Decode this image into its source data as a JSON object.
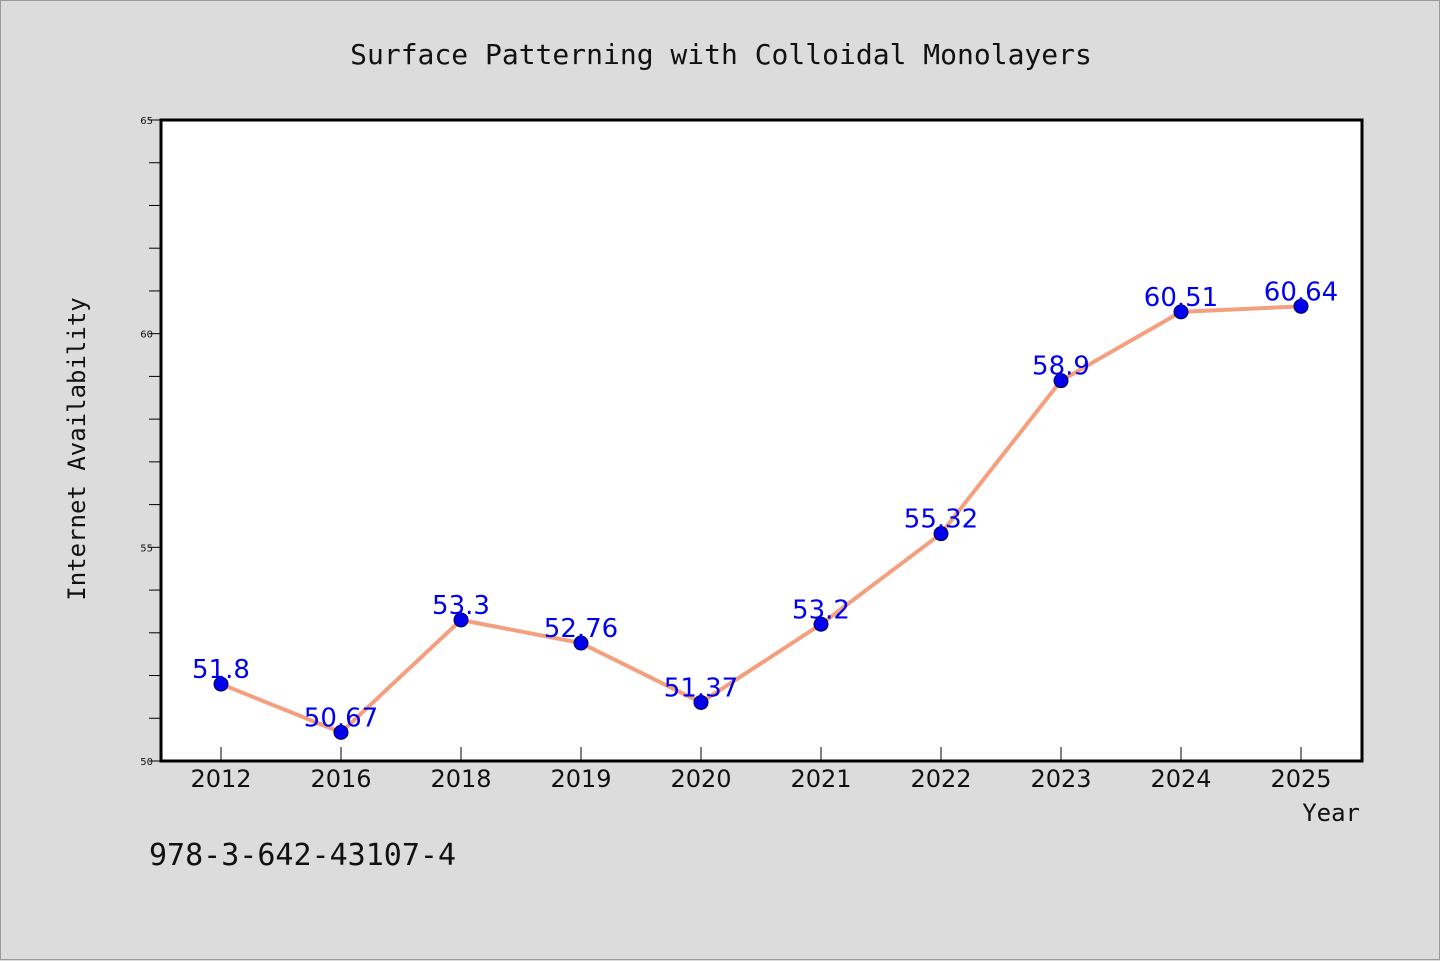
{
  "chart_data": {
    "type": "line",
    "title": "Surface Patterning with Colloidal Monolayers",
    "xlabel": "Year",
    "ylabel": "Internet Availability",
    "categories": [
      "2012",
      "2016",
      "2018",
      "2019",
      "2020",
      "2021",
      "2022",
      "2023",
      "2024",
      "2025"
    ],
    "series": [
      {
        "values": [
          51.8,
          50.67,
          53.3,
          52.76,
          51.37,
          53.2,
          55.32,
          58.9,
          60.51,
          60.64
        ],
        "data_labels": [
          "51.8",
          "50.67",
          "53.3",
          "52.76",
          "51.37",
          "53.2",
          "55.32",
          "58.9",
          "60.51",
          "60.64"
        ],
        "line_color": "#f4a07e",
        "marker_color": "#0000ee"
      }
    ],
    "ylim": [
      50,
      65
    ],
    "yticks": [
      "50",
      "55",
      "60",
      "65"
    ],
    "grid": false,
    "legend": "none"
  },
  "footer": {
    "isbn": "978-3-642-43107-4"
  },
  "colors": {
    "background": "#dcdcdc",
    "plot_background": "#ffffff",
    "axis": "#000000"
  }
}
